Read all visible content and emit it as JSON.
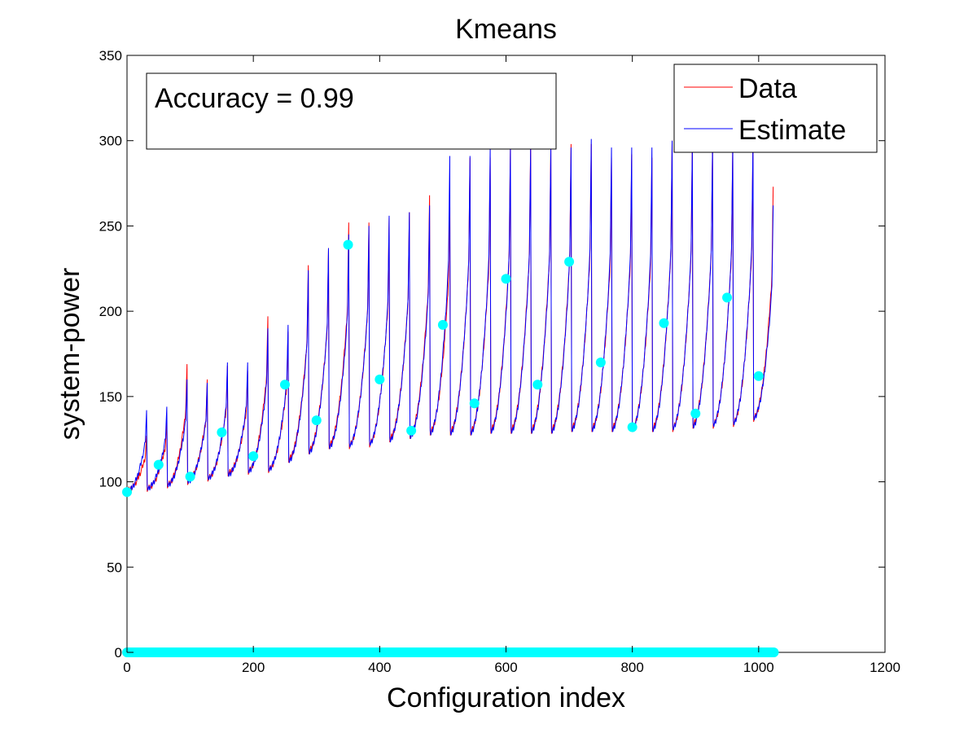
{
  "chart_data": {
    "type": "line",
    "title": "Kmeans",
    "xlabel": "Configuration index",
    "ylabel": "system-power",
    "xlim": [
      0,
      1200
    ],
    "ylim": [
      0,
      350
    ],
    "xticks": [
      0,
      200,
      400,
      600,
      800,
      1000,
      1200
    ],
    "yticks": [
      0,
      50,
      100,
      150,
      200,
      250,
      300,
      350
    ],
    "xtick_labels": [
      "0",
      "200",
      "400",
      "600",
      "800",
      "1000",
      "1200"
    ],
    "ytick_labels": [
      "0",
      "50",
      "100",
      "150",
      "200",
      "250",
      "300",
      "350"
    ],
    "annotation": "Accuracy = 0.99",
    "legend": {
      "position": "top-right",
      "entries": [
        "Data",
        "Estimate"
      ]
    },
    "grid": false,
    "n_points": 1024,
    "series": [
      {
        "name": "Data",
        "color": "#ff0000",
        "cycles": [
          {
            "start": 0,
            "end": 32,
            "base": 95,
            "top": 127
          },
          {
            "start": 32,
            "end": 64,
            "base": 96,
            "top": 137
          },
          {
            "start": 64,
            "end": 96,
            "base": 98,
            "top": 169
          },
          {
            "start": 96,
            "end": 128,
            "base": 100,
            "top": 160
          },
          {
            "start": 128,
            "end": 160,
            "base": 102,
            "top": 168
          },
          {
            "start": 160,
            "end": 192,
            "base": 105,
            "top": 165
          },
          {
            "start": 192,
            "end": 224,
            "base": 106,
            "top": 197
          },
          {
            "start": 224,
            "end": 256,
            "base": 107,
            "top": 188
          },
          {
            "start": 256,
            "end": 288,
            "base": 113,
            "top": 227
          },
          {
            "start": 288,
            "end": 320,
            "base": 118,
            "top": 237
          },
          {
            "start": 320,
            "end": 352,
            "base": 121,
            "top": 252
          },
          {
            "start": 352,
            "end": 384,
            "base": 121,
            "top": 252
          },
          {
            "start": 384,
            "end": 416,
            "base": 122,
            "top": 255
          },
          {
            "start": 416,
            "end": 448,
            "base": 125,
            "top": 258
          },
          {
            "start": 448,
            "end": 480,
            "base": 127,
            "top": 268
          },
          {
            "start": 480,
            "end": 512,
            "base": 129,
            "top": 274
          },
          {
            "start": 512,
            "end": 544,
            "base": 129,
            "top": 290
          },
          {
            "start": 544,
            "end": 576,
            "base": 129,
            "top": 290
          },
          {
            "start": 576,
            "end": 608,
            "base": 130,
            "top": 298
          },
          {
            "start": 608,
            "end": 640,
            "base": 130,
            "top": 298
          },
          {
            "start": 640,
            "end": 672,
            "base": 130,
            "top": 298
          },
          {
            "start": 672,
            "end": 704,
            "base": 130,
            "top": 298
          },
          {
            "start": 704,
            "end": 736,
            "base": 131,
            "top": 298
          },
          {
            "start": 736,
            "end": 768,
            "base": 131,
            "top": 290
          },
          {
            "start": 768,
            "end": 800,
            "base": 131,
            "top": 292
          },
          {
            "start": 800,
            "end": 832,
            "base": 131,
            "top": 290
          },
          {
            "start": 832,
            "end": 864,
            "base": 131,
            "top": 300
          },
          {
            "start": 864,
            "end": 896,
            "base": 131,
            "top": 298
          },
          {
            "start": 896,
            "end": 928,
            "base": 133,
            "top": 298
          },
          {
            "start": 928,
            "end": 960,
            "base": 133,
            "top": 298
          },
          {
            "start": 960,
            "end": 992,
            "base": 134,
            "top": 298
          },
          {
            "start": 992,
            "end": 1024,
            "base": 137,
            "top": 273
          }
        ]
      },
      {
        "name": "Estimate",
        "color": "#0000ff",
        "cycles": [
          {
            "start": 0,
            "end": 32,
            "base": 94,
            "top": 142
          },
          {
            "start": 32,
            "end": 64,
            "base": 96,
            "top": 144
          },
          {
            "start": 64,
            "end": 96,
            "base": 98,
            "top": 160
          },
          {
            "start": 96,
            "end": 128,
            "base": 100,
            "top": 158
          },
          {
            "start": 128,
            "end": 160,
            "base": 102,
            "top": 170
          },
          {
            "start": 160,
            "end": 192,
            "base": 104,
            "top": 170
          },
          {
            "start": 192,
            "end": 224,
            "base": 106,
            "top": 190
          },
          {
            "start": 224,
            "end": 256,
            "base": 107,
            "top": 192
          },
          {
            "start": 256,
            "end": 288,
            "base": 112,
            "top": 224
          },
          {
            "start": 288,
            "end": 320,
            "base": 117,
            "top": 237
          },
          {
            "start": 320,
            "end": 352,
            "base": 120,
            "top": 245
          },
          {
            "start": 352,
            "end": 384,
            "base": 121,
            "top": 250
          },
          {
            "start": 384,
            "end": 416,
            "base": 122,
            "top": 256
          },
          {
            "start": 416,
            "end": 448,
            "base": 124,
            "top": 258
          },
          {
            "start": 448,
            "end": 480,
            "base": 126,
            "top": 262
          },
          {
            "start": 480,
            "end": 512,
            "base": 128,
            "top": 291
          },
          {
            "start": 512,
            "end": 544,
            "base": 128,
            "top": 291
          },
          {
            "start": 544,
            "end": 576,
            "base": 128,
            "top": 296
          },
          {
            "start": 576,
            "end": 608,
            "base": 129,
            "top": 296
          },
          {
            "start": 608,
            "end": 640,
            "base": 129,
            "top": 296
          },
          {
            "start": 640,
            "end": 672,
            "base": 129,
            "top": 296
          },
          {
            "start": 672,
            "end": 704,
            "base": 129,
            "top": 296
          },
          {
            "start": 704,
            "end": 736,
            "base": 130,
            "top": 301
          },
          {
            "start": 736,
            "end": 768,
            "base": 130,
            "top": 296
          },
          {
            "start": 768,
            "end": 800,
            "base": 130,
            "top": 296
          },
          {
            "start": 800,
            "end": 832,
            "base": 130,
            "top": 296
          },
          {
            "start": 832,
            "end": 864,
            "base": 130,
            "top": 300
          },
          {
            "start": 864,
            "end": 896,
            "base": 131,
            "top": 298
          },
          {
            "start": 896,
            "end": 928,
            "base": 132,
            "top": 298
          },
          {
            "start": 928,
            "end": 960,
            "base": 133,
            "top": 298
          },
          {
            "start": 960,
            "end": 992,
            "base": 134,
            "top": 300
          },
          {
            "start": 992,
            "end": 1024,
            "base": 137,
            "top": 262
          }
        ]
      }
    ],
    "sample_points": {
      "color": "#00ffff",
      "x": [
        0,
        50,
        100,
        150,
        200,
        250,
        300,
        350,
        400,
        450,
        500,
        550,
        600,
        650,
        700,
        750,
        800,
        850,
        900,
        950,
        1000
      ],
      "y": [
        94,
        110,
        103,
        129,
        115,
        157,
        136,
        239,
        160,
        130,
        192,
        146,
        219,
        157,
        229,
        170,
        132,
        193,
        140,
        208,
        162
      ]
    },
    "zero_points": {
      "color": "#00ffff",
      "x_range": [
        0,
        1024
      ],
      "y": 0
    }
  }
}
